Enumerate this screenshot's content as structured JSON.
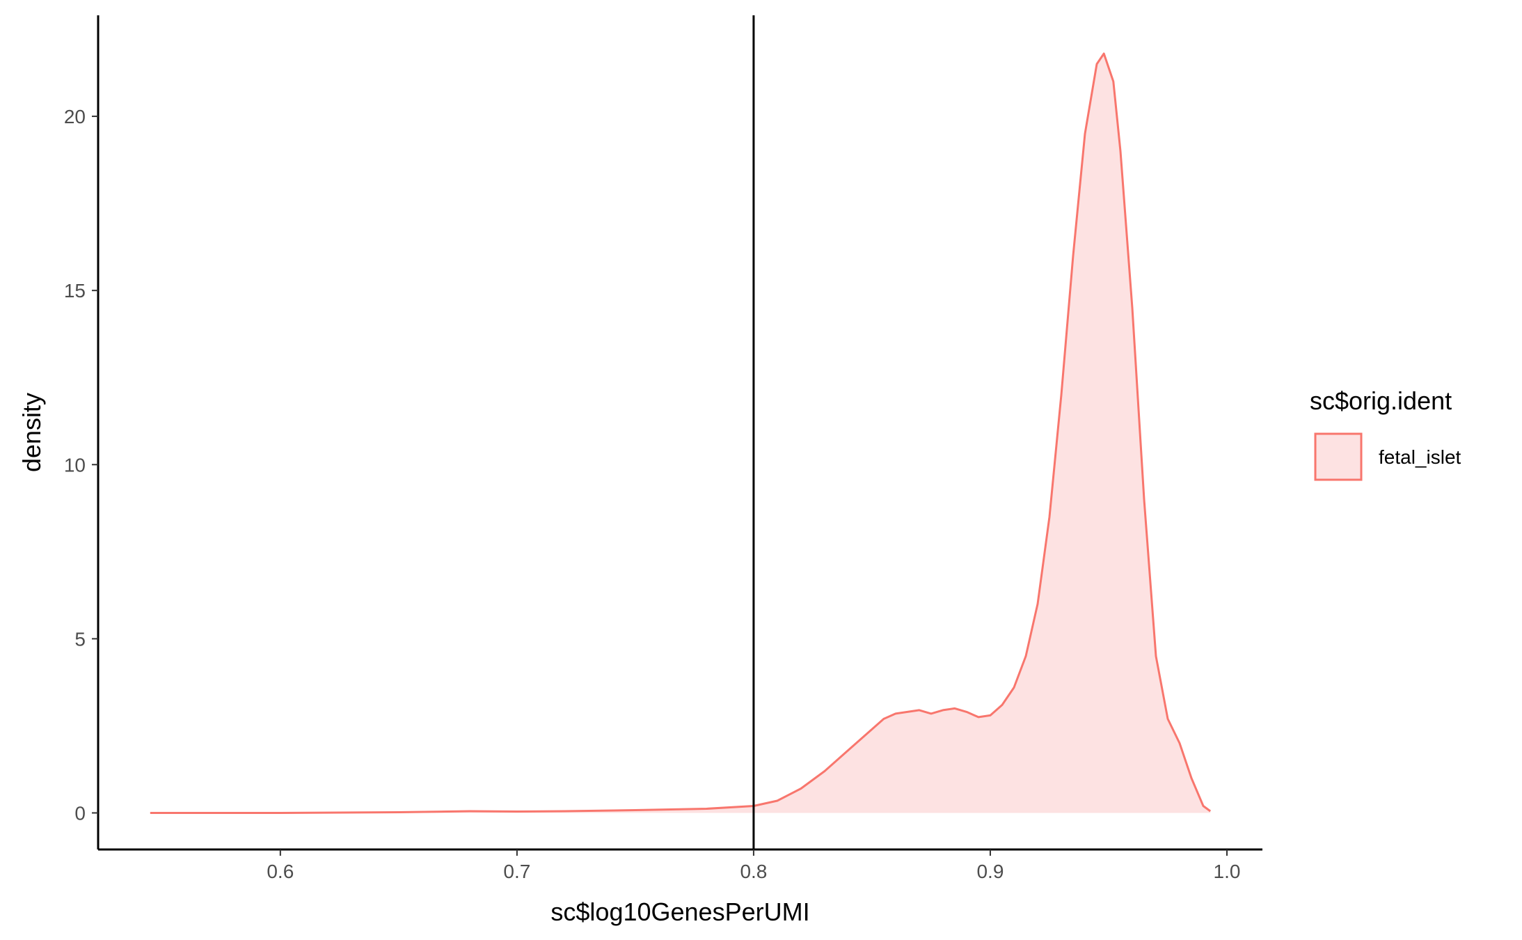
{
  "chart_data": {
    "type": "area",
    "xlabel": "sc$log10GenesPerUMI",
    "ylabel": "density",
    "xlim": [
      0.523,
      1.015
    ],
    "ylim": [
      -1.05,
      22.9
    ],
    "x_ticks": [
      {
        "value": 0.6,
        "label": "0.6"
      },
      {
        "value": 0.7,
        "label": "0.7"
      },
      {
        "value": 0.8,
        "label": "0.8"
      },
      {
        "value": 0.9,
        "label": "0.9"
      },
      {
        "value": 1.0,
        "label": "1.0"
      }
    ],
    "y_ticks": [
      {
        "value": 0,
        "label": "0"
      },
      {
        "value": 5,
        "label": "5"
      },
      {
        "value": 10,
        "label": "10"
      },
      {
        "value": 15,
        "label": "15"
      },
      {
        "value": 20,
        "label": "20"
      }
    ],
    "reference_line": {
      "x": 0.8
    },
    "legend": {
      "title": "sc$orig.ident",
      "position": "right",
      "entries": [
        {
          "label": "fetal_islet"
        }
      ]
    },
    "series": [
      {
        "name": "fetal_islet",
        "line_color": "#F8766D",
        "fill_color": "#FDE2E2",
        "points": [
          [
            0.545,
            0.0
          ],
          [
            0.6,
            0.0
          ],
          [
            0.65,
            0.02
          ],
          [
            0.68,
            0.05
          ],
          [
            0.7,
            0.04
          ],
          [
            0.72,
            0.05
          ],
          [
            0.75,
            0.08
          ],
          [
            0.78,
            0.12
          ],
          [
            0.8,
            0.2
          ],
          [
            0.81,
            0.35
          ],
          [
            0.82,
            0.7
          ],
          [
            0.83,
            1.2
          ],
          [
            0.84,
            1.8
          ],
          [
            0.85,
            2.4
          ],
          [
            0.855,
            2.7
          ],
          [
            0.86,
            2.85
          ],
          [
            0.87,
            2.95
          ],
          [
            0.875,
            2.85
          ],
          [
            0.88,
            2.95
          ],
          [
            0.885,
            3.0
          ],
          [
            0.89,
            2.9
          ],
          [
            0.895,
            2.75
          ],
          [
            0.9,
            2.8
          ],
          [
            0.905,
            3.1
          ],
          [
            0.91,
            3.6
          ],
          [
            0.915,
            4.5
          ],
          [
            0.92,
            6.0
          ],
          [
            0.925,
            8.5
          ],
          [
            0.93,
            12.0
          ],
          [
            0.935,
            16.0
          ],
          [
            0.94,
            19.5
          ],
          [
            0.945,
            21.5
          ],
          [
            0.948,
            21.8
          ],
          [
            0.952,
            21.0
          ],
          [
            0.955,
            19.0
          ],
          [
            0.96,
            14.5
          ],
          [
            0.965,
            9.0
          ],
          [
            0.97,
            4.5
          ],
          [
            0.975,
            2.7
          ],
          [
            0.98,
            2.0
          ],
          [
            0.985,
            1.0
          ],
          [
            0.99,
            0.2
          ],
          [
            0.993,
            0.05
          ]
        ]
      }
    ]
  }
}
